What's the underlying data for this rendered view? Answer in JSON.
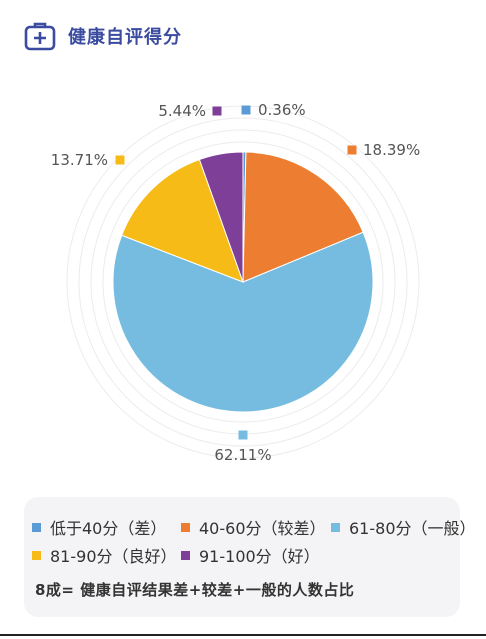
{
  "header": {
    "title": "健康自评得分",
    "icon": "medical-kit-icon",
    "accent": "#3b4ba0"
  },
  "chart_data": {
    "type": "pie",
    "title": "",
    "series": [
      {
        "name": "低于40分（差）",
        "value": 0.36,
        "label": "0.36%",
        "color": "#5b9bd5"
      },
      {
        "name": "40-60分（较差）",
        "value": 18.39,
        "label": "18.39%",
        "color": "#ed7d31"
      },
      {
        "name": "61-80分（一般）",
        "value": 62.11,
        "label": "62.11%",
        "color": "#75bce0"
      },
      {
        "name": "81-90分（良好）",
        "value": 13.71,
        "label": "13.71%",
        "color": "#f6bb17"
      },
      {
        "name": "91-100分（好）",
        "value": 5.44,
        "label": "5.44%",
        "color": "#7e3f98"
      }
    ],
    "legend_position": "bottom"
  },
  "legend": {
    "items": [
      {
        "label": "低于40分（差）",
        "color": "#5b9bd5"
      },
      {
        "label": "40-60分（较差）",
        "color": "#ed7d31"
      },
      {
        "label": "61-80分（一般）",
        "color": "#75bce0"
      },
      {
        "label": "81-90分（良好）",
        "color": "#f6bb17"
      },
      {
        "label": "91-100分（好）",
        "color": "#7e3f98"
      }
    ],
    "summary": "8成= 健康自评结果差+较差+一般的人数占比"
  }
}
